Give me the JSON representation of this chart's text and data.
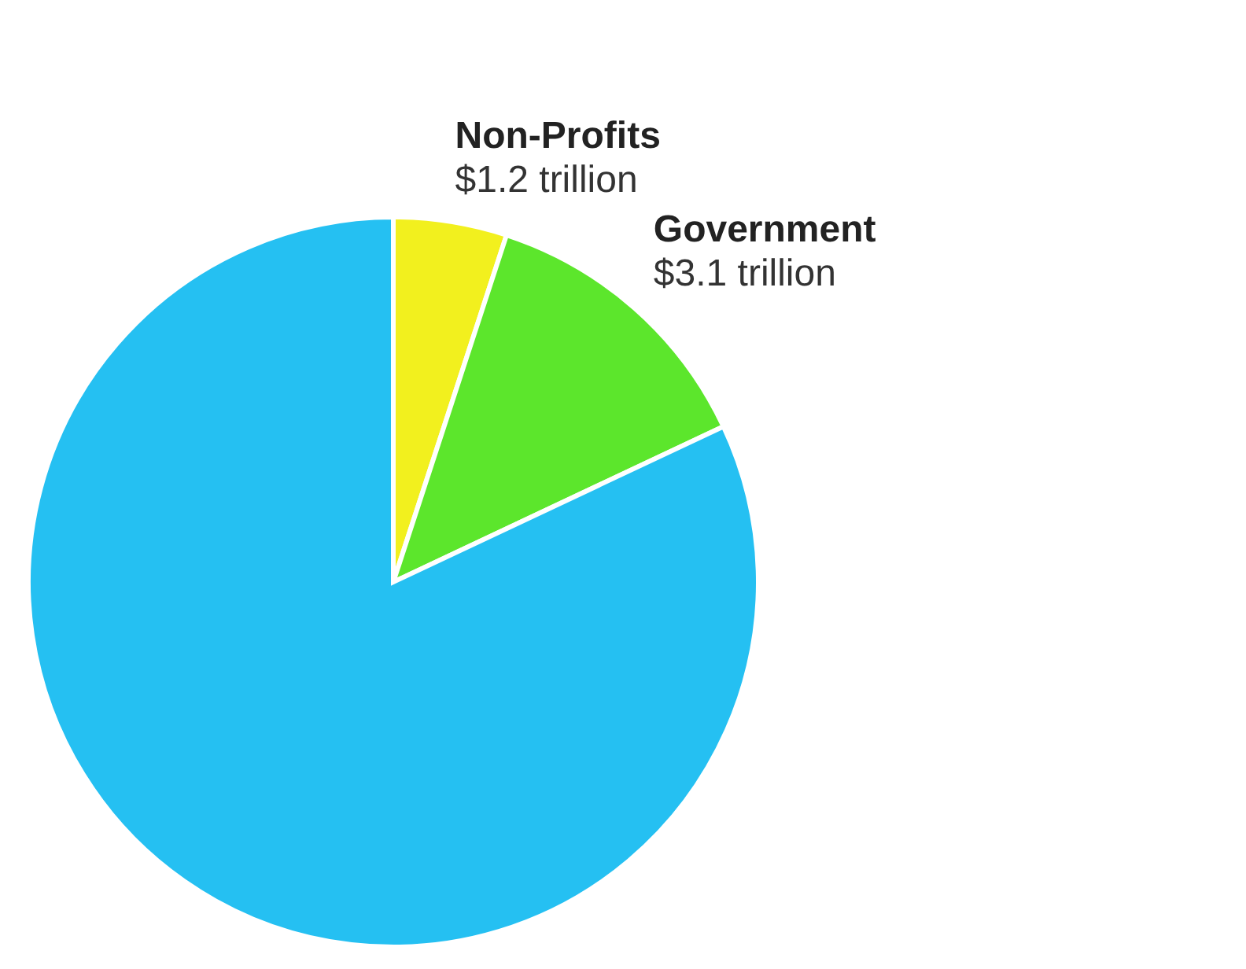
{
  "chart_data": {
    "type": "pie",
    "categories": [
      "Non-Profits",
      "Government",
      null
    ],
    "values": [
      1.2,
      3.1,
      19.6
    ],
    "value_labels": [
      "$1.2 trillion",
      "$3.1 trillion",
      null
    ],
    "colors": [
      "#f2f01e",
      "#5ce62c",
      "#25c0f2"
    ],
    "legend": false
  }
}
